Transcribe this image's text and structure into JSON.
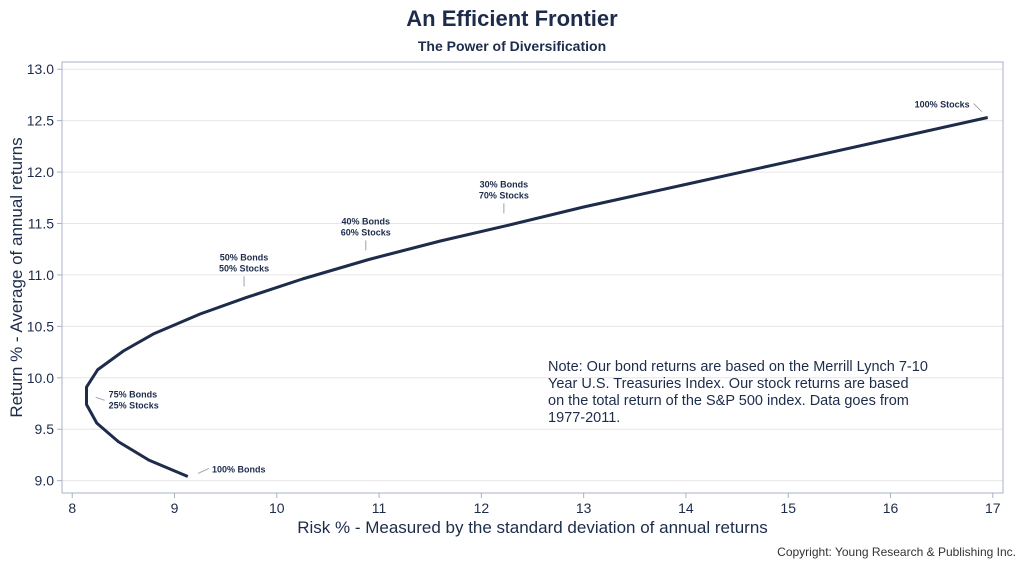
{
  "chart_data": {
    "type": "line",
    "title": "An Efficient Frontier",
    "subtitle": "The Power of Diversification",
    "xlabel": "Risk % - Measured by the standard deviation of annual returns",
    "ylabel": "Return % - Average of annual returns",
    "xlim": [
      7.9,
      17.1
    ],
    "ylim": [
      8.88,
      13.07
    ],
    "xticks": [
      8,
      9,
      10,
      11,
      12,
      13,
      14,
      15,
      16,
      17
    ],
    "yticks": [
      "9.0",
      "9.5",
      "10.0",
      "10.5",
      "11.0",
      "11.5",
      "12.0",
      "12.5",
      "13.0"
    ],
    "grid": true,
    "colors": {
      "line": "#1d2c4a",
      "frame": "#a9b1c5",
      "grid": "#e6e6e6"
    },
    "series": [
      {
        "x": [
          9.13,
          8.75,
          8.45,
          8.24,
          8.14,
          8.14,
          8.25,
          8.5,
          8.8,
          9.25,
          9.7,
          10.25,
          10.9,
          11.6,
          12.25,
          13.0,
          14.0,
          15.0,
          16.0,
          16.95
        ],
        "y": [
          9.04,
          9.2,
          9.38,
          9.56,
          9.74,
          9.91,
          10.08,
          10.26,
          10.43,
          10.62,
          10.78,
          10.96,
          11.15,
          11.33,
          11.48,
          11.66,
          11.88,
          12.1,
          12.32,
          12.53
        ]
      }
    ],
    "annotations": [
      {
        "lines": [
          "100% Stocks"
        ],
        "x": 16.95,
        "y": 12.53
      },
      {
        "lines": [
          "30% Bonds",
          "70% Stocks"
        ],
        "x": 12.22,
        "y": 11.56
      },
      {
        "lines": [
          "40% Bonds",
          "60% Stocks"
        ],
        "x": 10.87,
        "y": 11.2
      },
      {
        "lines": [
          "50% Bonds",
          "50% Stocks"
        ],
        "x": 9.68,
        "y": 10.85
      },
      {
        "lines": [
          "75% Bonds",
          "25% Stocks"
        ],
        "x": 8.2,
        "y": 9.82
      },
      {
        "lines": [
          "100% Bonds"
        ],
        "x": 9.2,
        "y": 9.08
      }
    ],
    "note": [
      "Note:  Our bond returns are based on the Merrill Lynch 7-10",
      "Year U.S. Treasuries Index.  Our stock returns are based",
      "on the total return of the S&P 500 index.  Data goes from",
      "1977-2011."
    ]
  },
  "copyright": "Copyright: Young Research & Publishing Inc."
}
